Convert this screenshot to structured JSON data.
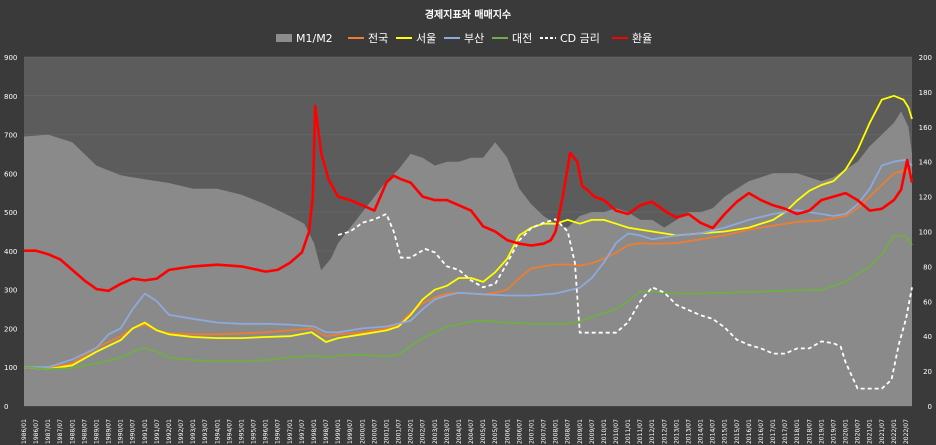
{
  "chart_data": {
    "type": "line",
    "title": "경제지표와 매매지수",
    "background": "#3a3a3a",
    "plot_background": "#5c5c5c",
    "ylim_left": [
      0,
      900
    ],
    "yticks_left": [
      "0",
      "100",
      "200",
      "300",
      "400",
      "500",
      "600",
      "700",
      "800",
      "900"
    ],
    "ylim_right": [
      0,
      200
    ],
    "yticks_right": [
      "0",
      "20",
      "40",
      "60",
      "80",
      "100",
      "120",
      "140",
      "160",
      "180",
      "200"
    ],
    "x_start_year": 1986,
    "x_end_year": 2022.75,
    "xtick_labels": [
      "1986/01",
      "1986/07",
      "1987/01",
      "1987/07",
      "1988/01",
      "1988/07",
      "1989/01",
      "1989/07",
      "1990/01",
      "1990/07",
      "1991/01",
      "1991/07",
      "1992/01",
      "1992/07",
      "1993/01",
      "1993/07",
      "1994/01",
      "1994/07",
      "1995/01",
      "1995/07",
      "1996/01",
      "1996/07",
      "1997/01",
      "1997/07",
      "1998/01",
      "1998/07",
      "1999/01",
      "1999/07",
      "2000/01",
      "2000/07",
      "2001/01",
      "2001/07",
      "2002/01",
      "2002/07",
      "2003/01",
      "2003/07",
      "2004/01",
      "2004/07",
      "2005/01",
      "2005/07",
      "2006/01",
      "2006/07",
      "2007/01",
      "2007/07",
      "2008/01",
      "2008/07",
      "2009/01",
      "2009/07",
      "2010/01",
      "2010/07",
      "2011/01",
      "2011/07",
      "2012/01",
      "2012/07",
      "2013/01",
      "2013/07",
      "2014/01",
      "2014/07",
      "2015/01",
      "2015/07",
      "2016/01",
      "2016/07",
      "2017/01",
      "2017/07",
      "2018/01",
      "2018/07",
      "2019/01",
      "2019/07",
      "2020/01",
      "2020/07",
      "2021/01",
      "2021/07",
      "2022/01",
      "2022/07"
    ],
    "legend": {
      "placement": "top-center"
    },
    "series": [
      {
        "name": "M1/M2",
        "kind": "area",
        "axis": "left",
        "color": "#8c8c8c",
        "x": [
          1986.0,
          1987.0,
          1988.0,
          1989.0,
          1990.0,
          1991.0,
          1992.0,
          1993.0,
          1994.0,
          1995.0,
          1996.0,
          1997.0,
          1997.6,
          1998.0,
          1998.3,
          1998.7,
          1999.0,
          1999.5,
          2000.0,
          2000.5,
          2001.0,
          2001.5,
          2002.0,
          2002.5,
          2003.0,
          2003.5,
          2004.0,
          2004.5,
          2005.0,
          2005.5,
          2006.0,
          2006.5,
          2007.0,
          2007.5,
          2008.0,
          2008.5,
          2009.0,
          2009.5,
          2010.0,
          2010.5,
          2011.0,
          2011.5,
          2012.0,
          2012.5,
          2013.0,
          2013.5,
          2014.0,
          2014.5,
          2015.0,
          2015.5,
          2016.0,
          2016.5,
          2017.0,
          2017.5,
          2018.0,
          2018.5,
          2019.0,
          2019.5,
          2020.0,
          2020.5,
          2021.0,
          2021.5,
          2022.0,
          2022.3,
          2022.6,
          2022.75
        ],
        "y": [
          695,
          700,
          680,
          620,
          595,
          585,
          575,
          560,
          560,
          545,
          520,
          490,
          470,
          420,
          350,
          380,
          420,
          460,
          500,
          540,
          580,
          610,
          650,
          640,
          620,
          630,
          630,
          640,
          640,
          680,
          640,
          560,
          520,
          490,
          470,
          460,
          490,
          500,
          500,
          510,
          500,
          480,
          480,
          460,
          480,
          500,
          500,
          510,
          540,
          560,
          580,
          590,
          600,
          600,
          600,
          590,
          580,
          590,
          610,
          630,
          670,
          700,
          730,
          760,
          720,
          650
        ]
      },
      {
        "name": "전국",
        "kind": "line",
        "axis": "left",
        "color": "#ed7d31",
        "x": [
          1986.0,
          1987.0,
          1988.0,
          1989.0,
          1990.0,
          1990.5,
          1991.0,
          1991.5,
          1992.0,
          1993.0,
          1994.0,
          1995.0,
          1996.0,
          1997.0,
          1997.9,
          1998.5,
          1999.0,
          2000.0,
          2001.0,
          2001.5,
          2002.0,
          2002.5,
          2003.0,
          2003.5,
          2004.0,
          2004.5,
          2005.0,
          2005.5,
          2006.0,
          2006.5,
          2007.0,
          2007.5,
          2008.0,
          2008.5,
          2009.0,
          2009.5,
          2010.0,
          2010.5,
          2011.0,
          2011.5,
          2012.0,
          2013.0,
          2014.0,
          2015.0,
          2016.0,
          2017.0,
          2018.0,
          2019.0,
          2020.0,
          2020.5,
          2021.0,
          2021.5,
          2022.0,
          2022.5,
          2022.75
        ],
        "y": [
          100,
          98,
          110,
          150,
          180,
          200,
          210,
          195,
          188,
          185,
          185,
          187,
          190,
          195,
          200,
          180,
          185,
          190,
          200,
          210,
          240,
          265,
          280,
          290,
          292,
          290,
          288,
          292,
          300,
          330,
          355,
          360,
          365,
          365,
          362,
          368,
          380,
          395,
          415,
          420,
          418,
          420,
          430,
          440,
          455,
          465,
          475,
          478,
          490,
          510,
          540,
          570,
          600,
          608,
          600
        ]
      },
      {
        "name": "서울",
        "kind": "line",
        "axis": "left",
        "color": "#ffff00",
        "x": [
          1986.0,
          1987.0,
          1988.0,
          1989.0,
          1990.0,
          1990.5,
          1991.0,
          1991.5,
          1992.0,
          1993.0,
          1994.0,
          1995.0,
          1996.0,
          1997.0,
          1997.9,
          1998.5,
          1999.0,
          2000.0,
          2001.0,
          2001.5,
          2002.0,
          2002.5,
          2003.0,
          2003.5,
          2004.0,
          2004.5,
          2005.0,
          2005.5,
          2006.0,
          2006.5,
          2007.0,
          2007.5,
          2008.0,
          2008.5,
          2009.0,
          2009.5,
          2010.0,
          2010.5,
          2011.0,
          2011.5,
          2012.0,
          2012.5,
          2013.0,
          2014.0,
          2015.0,
          2016.0,
          2017.0,
          2017.5,
          2018.0,
          2018.5,
          2019.0,
          2019.5,
          2020.0,
          2020.5,
          2021.0,
          2021.5,
          2022.0,
          2022.4,
          2022.6,
          2022.75
        ],
        "y": [
          100,
          95,
          105,
          140,
          170,
          200,
          215,
          195,
          185,
          178,
          175,
          175,
          178,
          180,
          190,
          165,
          175,
          185,
          195,
          205,
          235,
          275,
          300,
          310,
          330,
          330,
          320,
          345,
          380,
          440,
          460,
          470,
          470,
          480,
          470,
          480,
          480,
          470,
          460,
          455,
          450,
          445,
          440,
          445,
          450,
          460,
          480,
          500,
          530,
          555,
          570,
          580,
          610,
          660,
          730,
          790,
          800,
          790,
          770,
          740
        ]
      },
      {
        "name": "부산",
        "kind": "line",
        "axis": "left",
        "color": "#8ea9db",
        "x": [
          1986.0,
          1987.0,
          1988.0,
          1989.0,
          1989.5,
          1990.0,
          1990.5,
          1991.0,
          1991.5,
          1992.0,
          1993.0,
          1994.0,
          1995.0,
          1996.0,
          1997.0,
          1998.0,
          1998.5,
          1999.0,
          2000.0,
          2001.0,
          2002.0,
          2002.5,
          2003.0,
          2003.5,
          2004.0,
          2004.5,
          2005.0,
          2006.0,
          2007.0,
          2008.0,
          2009.0,
          2009.5,
          2010.0,
          2010.5,
          2011.0,
          2011.5,
          2012.0,
          2013.0,
          2014.0,
          2015.0,
          2016.0,
          2017.0,
          2018.0,
          2018.5,
          2019.0,
          2019.5,
          2020.0,
          2020.5,
          2021.0,
          2021.5,
          2022.0,
          2022.5,
          2022.75
        ],
        "y": [
          100,
          100,
          120,
          150,
          185,
          200,
          250,
          290,
          270,
          235,
          225,
          215,
          212,
          212,
          210,
          205,
          190,
          190,
          200,
          205,
          220,
          250,
          275,
          285,
          292,
          290,
          288,
          285,
          285,
          290,
          305,
          330,
          370,
          420,
          445,
          440,
          430,
          440,
          445,
          460,
          480,
          495,
          505,
          500,
          495,
          490,
          495,
          520,
          560,
          620,
          630,
          635,
          620
        ]
      },
      {
        "name": "대전",
        "kind": "line",
        "axis": "left",
        "color": "#70ad47",
        "x": [
          1986.0,
          1987.0,
          1988.0,
          1989.0,
          1990.0,
          1990.5,
          1991.0,
          1991.5,
          1992.0,
          1993.0,
          1994.0,
          1995.0,
          1996.0,
          1997.0,
          1998.0,
          1998.5,
          1999.0,
          2000.0,
          2001.0,
          2001.5,
          2002.0,
          2002.5,
          2003.0,
          2003.5,
          2004.0,
          2004.5,
          2005.0,
          2006.0,
          2007.0,
          2008.0,
          2008.5,
          2009.0,
          2009.5,
          2010.0,
          2010.5,
          2011.0,
          2011.5,
          2012.0,
          2013.0,
          2014.0,
          2015.0,
          2016.0,
          2017.0,
          2018.0,
          2019.0,
          2019.5,
          2020.0,
          2020.5,
          2021.0,
          2021.5,
          2022.0,
          2022.5,
          2022.75
        ],
        "y": [
          100,
          95,
          98,
          110,
          125,
          140,
          150,
          140,
          125,
          118,
          115,
          115,
          118,
          125,
          130,
          125,
          130,
          132,
          128,
          132,
          155,
          175,
          190,
          205,
          210,
          218,
          220,
          215,
          212,
          212,
          212,
          218,
          230,
          240,
          250,
          270,
          295,
          295,
          290,
          290,
          292,
          294,
          296,
          298,
          300,
          310,
          320,
          340,
          360,
          390,
          440,
          438,
          415
        ]
      },
      {
        "name": "CD 금리",
        "kind": "line",
        "axis": "right",
        "dashed": true,
        "color": "#ffffff",
        "x": [
          1999.0,
          1999.5,
          2000.0,
          2000.5,
          2001.0,
          2001.3,
          2001.6,
          2002.0,
          2002.6,
          2003.0,
          2003.5,
          2004.0,
          2004.5,
          2005.0,
          2005.5,
          2006.0,
          2006.5,
          2007.0,
          2007.5,
          2008.0,
          2008.5,
          2008.8,
          2009.0,
          2009.5,
          2010.0,
          2010.5,
          2011.0,
          2011.5,
          2012.0,
          2012.5,
          2013.0,
          2013.5,
          2014.0,
          2014.5,
          2015.0,
          2015.5,
          2016.0,
          2016.5,
          2017.0,
          2017.5,
          2018.0,
          2018.5,
          2019.0,
          2019.5,
          2019.8,
          2020.0,
          2020.5,
          2021.0,
          2021.5,
          2021.9,
          2022.2,
          2022.5,
          2022.75
        ],
        "y": [
          98,
          100,
          105,
          107,
          110,
          100,
          85,
          85,
          90,
          88,
          80,
          78,
          72,
          68,
          70,
          82,
          95,
          102,
          105,
          107,
          100,
          82,
          42,
          42,
          42,
          42,
          48,
          60,
          68,
          65,
          58,
          55,
          52,
          50,
          45,
          38,
          35,
          33,
          30,
          30,
          33,
          33,
          37,
          36,
          34,
          25,
          10,
          10,
          10,
          15,
          35,
          50,
          68
        ]
      },
      {
        "name": "환율",
        "kind": "line",
        "axis": "right",
        "color": "#ff0000",
        "x": [
          1986.0,
          1986.5,
          1987.0,
          1987.5,
          1988.0,
          1988.5,
          1989.0,
          1989.5,
          1990.0,
          1990.5,
          1991.0,
          1991.5,
          1992.0,
          1993.0,
          1994.0,
          1995.0,
          1996.0,
          1996.5,
          1997.0,
          1997.5,
          1997.8,
          1997.95,
          1998.05,
          1998.3,
          1998.6,
          1999.0,
          1999.5,
          2000.0,
          2000.5,
          2001.0,
          2001.3,
          2001.6,
          2002.0,
          2002.5,
          2003.0,
          2003.5,
          2004.0,
          2004.5,
          2005.0,
          2005.5,
          2006.0,
          2006.5,
          2007.0,
          2007.5,
          2007.8,
          2008.0,
          2008.3,
          2008.6,
          2008.9,
          2009.1,
          2009.3,
          2009.6,
          2010.0,
          2010.5,
          2011.0,
          2011.5,
          2012.0,
          2012.5,
          2013.0,
          2013.5,
          2014.0,
          2014.5,
          2015.0,
          2015.5,
          2016.0,
          2016.5,
          2017.0,
          2017.5,
          2018.0,
          2018.5,
          2019.0,
          2019.5,
          2020.0,
          2020.5,
          2021.0,
          2021.5,
          2022.0,
          2022.3,
          2022.55,
          2022.75
        ],
        "y": [
          89,
          89,
          87,
          84,
          78,
          72,
          67,
          66,
          70,
          73,
          72,
          73,
          78,
          80,
          81,
          80,
          77,
          78,
          82,
          88,
          100,
          120,
          172,
          145,
          130,
          120,
          118,
          115,
          112,
          128,
          132,
          130,
          128,
          120,
          118,
          118,
          115,
          112,
          103,
          100,
          95,
          93,
          92,
          93,
          95,
          100,
          120,
          145,
          140,
          126,
          124,
          120,
          118,
          112,
          110,
          115,
          117,
          112,
          108,
          110,
          105,
          102,
          110,
          117,
          122,
          118,
          115,
          113,
          110,
          112,
          118,
          120,
          122,
          118,
          112,
          113,
          118,
          124,
          141,
          128
        ]
      }
    ]
  }
}
